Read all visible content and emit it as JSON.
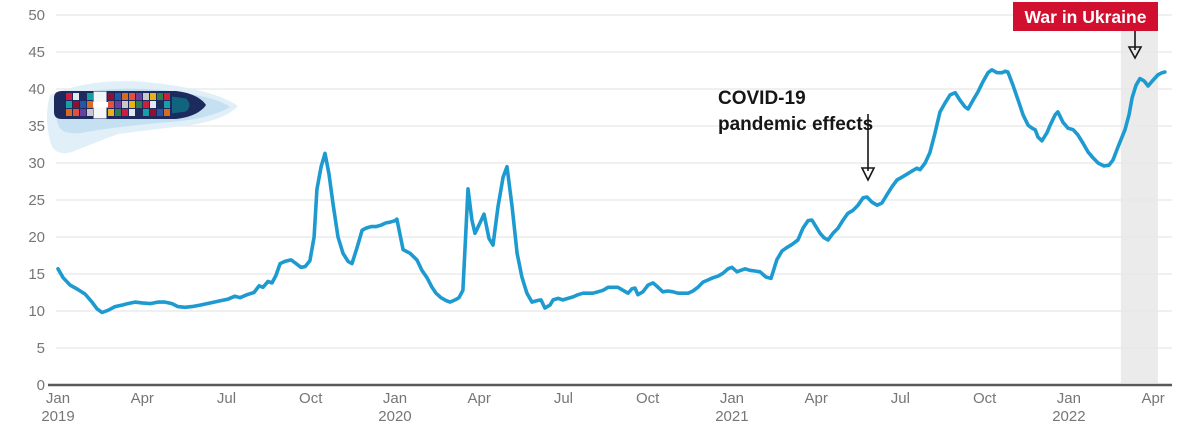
{
  "chart_data": {
    "type": "line",
    "line_color": "#1d9bd1",
    "grid_color": "#e8e8e8",
    "axis_color": "#58585a",
    "tick_label_color": "#767676",
    "y_axis": {
      "min": 0,
      "max": 50,
      "tick_step": 5,
      "ticks": [
        0,
        5,
        10,
        15,
        20,
        25,
        30,
        35,
        40,
        45,
        50
      ]
    },
    "x_axis": {
      "unit": "month",
      "ticks": [
        {
          "t": 0,
          "month": "Jan",
          "year": "2019"
        },
        {
          "t": 3,
          "month": "Apr"
        },
        {
          "t": 6,
          "month": "Jul"
        },
        {
          "t": 9,
          "month": "Oct"
        },
        {
          "t": 12,
          "month": "Jan",
          "year": "2020"
        },
        {
          "t": 15,
          "month": "Apr"
        },
        {
          "t": 18,
          "month": "Jul"
        },
        {
          "t": 21,
          "month": "Oct"
        },
        {
          "t": 24,
          "month": "Jan",
          "year": "2021"
        },
        {
          "t": 27,
          "month": "Apr"
        },
        {
          "t": 30,
          "month": "Jul"
        },
        {
          "t": 33,
          "month": "Oct"
        },
        {
          "t": 36,
          "month": "Jan",
          "year": "2022"
        },
        {
          "t": 39,
          "month": "Apr"
        }
      ]
    },
    "series": [
      {
        "name": "index-value",
        "points": [
          [
            0,
            15.7
          ],
          [
            0.18,
            14.5
          ],
          [
            0.43,
            13.5
          ],
          [
            0.71,
            12.9
          ],
          [
            0.96,
            12.3
          ],
          [
            1.21,
            11.2
          ],
          [
            1.39,
            10.3
          ],
          [
            1.57,
            9.8
          ],
          [
            1.78,
            10.1
          ],
          [
            2.03,
            10.6
          ],
          [
            2.28,
            10.8
          ],
          [
            2.49,
            11
          ],
          [
            2.74,
            11.2
          ],
          [
            2.99,
            11.1
          ],
          [
            3.28,
            11
          ],
          [
            3.56,
            11.2
          ],
          [
            3.81,
            11.2
          ],
          [
            4.06,
            11
          ],
          [
            4.27,
            10.6
          ],
          [
            4.52,
            10.5
          ],
          [
            4.77,
            10.6
          ],
          [
            5.06,
            10.8
          ],
          [
            5.31,
            11
          ],
          [
            5.56,
            11.2
          ],
          [
            5.8,
            11.4
          ],
          [
            6.05,
            11.6
          ],
          [
            6.3,
            12
          ],
          [
            6.48,
            11.8
          ],
          [
            6.73,
            12.2
          ],
          [
            6.98,
            12.5
          ],
          [
            7.16,
            13.4
          ],
          [
            7.3,
            13.2
          ],
          [
            7.48,
            14
          ],
          [
            7.62,
            13.8
          ],
          [
            7.76,
            14.8
          ],
          [
            7.91,
            16.4
          ],
          [
            8.08,
            16.7
          ],
          [
            8.3,
            16.9
          ],
          [
            8.48,
            16.4
          ],
          [
            8.65,
            15.9
          ],
          [
            8.8,
            16
          ],
          [
            8.97,
            16.8
          ],
          [
            9.12,
            20
          ],
          [
            9.22,
            26.4
          ],
          [
            9.37,
            29.5
          ],
          [
            9.51,
            31.3
          ],
          [
            9.65,
            28.5
          ],
          [
            9.79,
            24.6
          ],
          [
            9.97,
            20
          ],
          [
            10.15,
            17.8
          ],
          [
            10.33,
            16.7
          ],
          [
            10.47,
            16.4
          ],
          [
            10.65,
            18.6
          ],
          [
            10.83,
            20.9
          ],
          [
            10.97,
            21.2
          ],
          [
            11.15,
            21.4
          ],
          [
            11.32,
            21.4
          ],
          [
            11.5,
            21.6
          ],
          [
            11.68,
            21.9
          ],
          [
            11.82,
            22
          ],
          [
            12,
            22.2
          ],
          [
            12.07,
            22.4
          ],
          [
            12.29,
            18.3
          ],
          [
            12.54,
            17.8
          ],
          [
            12.78,
            16.9
          ],
          [
            12.96,
            15.5
          ],
          [
            13.14,
            14.5
          ],
          [
            13.32,
            13.2
          ],
          [
            13.46,
            12.4
          ],
          [
            13.64,
            11.8
          ],
          [
            13.82,
            11.4
          ],
          [
            13.96,
            11.2
          ],
          [
            14.14,
            11.5
          ],
          [
            14.28,
            11.8
          ],
          [
            14.42,
            12.8
          ],
          [
            14.6,
            26.5
          ],
          [
            14.74,
            22.3
          ],
          [
            14.85,
            20.5
          ],
          [
            15.03,
            21.9
          ],
          [
            15.17,
            23.1
          ],
          [
            15.35,
            19.8
          ],
          [
            15.49,
            18.9
          ],
          [
            15.67,
            24.1
          ],
          [
            15.85,
            28.1
          ],
          [
            15.99,
            29.5
          ],
          [
            16.17,
            24.1
          ],
          [
            16.35,
            17.8
          ],
          [
            16.52,
            14.6
          ],
          [
            16.7,
            12.4
          ],
          [
            16.88,
            11.2
          ],
          [
            17.06,
            11.4
          ],
          [
            17.2,
            11.5
          ],
          [
            17.34,
            10.4
          ],
          [
            17.52,
            10.8
          ],
          [
            17.63,
            11.5
          ],
          [
            17.81,
            11.7
          ],
          [
            17.98,
            11.5
          ],
          [
            18.16,
            11.7
          ],
          [
            18.34,
            11.9
          ],
          [
            18.52,
            12.2
          ],
          [
            18.7,
            12.4
          ],
          [
            18.87,
            12.4
          ],
          [
            19.05,
            12.4
          ],
          [
            19.23,
            12.6
          ],
          [
            19.41,
            12.8
          ],
          [
            19.59,
            13.2
          ],
          [
            19.76,
            13.2
          ],
          [
            19.94,
            13.2
          ],
          [
            20.12,
            12.8
          ],
          [
            20.3,
            12.4
          ],
          [
            20.44,
            13
          ],
          [
            20.55,
            13.1
          ],
          [
            20.65,
            12.2
          ],
          [
            20.83,
            12.6
          ],
          [
            21.01,
            13.5
          ],
          [
            21.19,
            13.8
          ],
          [
            21.37,
            13.2
          ],
          [
            21.54,
            12.6
          ],
          [
            21.72,
            12.7
          ],
          [
            21.9,
            12.6
          ],
          [
            22.08,
            12.4
          ],
          [
            22.26,
            12.4
          ],
          [
            22.44,
            12.4
          ],
          [
            22.61,
            12.7
          ],
          [
            22.79,
            13.2
          ],
          [
            22.97,
            13.9
          ],
          [
            23.15,
            14.2
          ],
          [
            23.33,
            14.5
          ],
          [
            23.5,
            14.7
          ],
          [
            23.68,
            15.1
          ],
          [
            23.86,
            15.7
          ],
          [
            24,
            15.9
          ],
          [
            24.18,
            15.3
          ],
          [
            24.32,
            15.5
          ],
          [
            24.47,
            15.7
          ],
          [
            24.64,
            15.5
          ],
          [
            24.82,
            15.4
          ],
          [
            25,
            15.3
          ],
          [
            25.21,
            14.6
          ],
          [
            25.39,
            14.4
          ],
          [
            25.6,
            16.9
          ],
          [
            25.78,
            18.1
          ],
          [
            25.96,
            18.6
          ],
          [
            26.14,
            19
          ],
          [
            26.35,
            19.6
          ],
          [
            26.53,
            21.2
          ],
          [
            26.71,
            22.2
          ],
          [
            26.85,
            22.3
          ],
          [
            26.99,
            21.4
          ],
          [
            27.14,
            20.5
          ],
          [
            27.28,
            19.9
          ],
          [
            27.42,
            19.6
          ],
          [
            27.6,
            20.5
          ],
          [
            27.78,
            21.2
          ],
          [
            27.96,
            22.3
          ],
          [
            28.13,
            23.2
          ],
          [
            28.31,
            23.6
          ],
          [
            28.49,
            24.3
          ],
          [
            28.67,
            25.3
          ],
          [
            28.81,
            25.4
          ],
          [
            28.99,
            24.7
          ],
          [
            29.17,
            24.3
          ],
          [
            29.34,
            24.6
          ],
          [
            29.52,
            25.7
          ],
          [
            29.7,
            26.8
          ],
          [
            29.88,
            27.7
          ],
          [
            30.06,
            28.1
          ],
          [
            30.24,
            28.5
          ],
          [
            30.41,
            28.9
          ],
          [
            30.59,
            29.3
          ],
          [
            30.7,
            29.1
          ],
          [
            30.88,
            30
          ],
          [
            31.05,
            31.4
          ],
          [
            31.23,
            34
          ],
          [
            31.41,
            36.9
          ],
          [
            31.59,
            38.1
          ],
          [
            31.77,
            39.2
          ],
          [
            31.95,
            39.5
          ],
          [
            32.12,
            38.5
          ],
          [
            32.3,
            37.6
          ],
          [
            32.41,
            37.3
          ],
          [
            32.59,
            38.5
          ],
          [
            32.76,
            39.6
          ],
          [
            32.94,
            41
          ],
          [
            33.12,
            42.2
          ],
          [
            33.26,
            42.6
          ],
          [
            33.44,
            42.2
          ],
          [
            33.62,
            42.2
          ],
          [
            33.73,
            42.4
          ],
          [
            33.83,
            42.3
          ],
          [
            34.01,
            40.5
          ],
          [
            34.19,
            38.5
          ],
          [
            34.37,
            36.5
          ],
          [
            34.55,
            35.1
          ],
          [
            34.69,
            34.7
          ],
          [
            34.8,
            34.5
          ],
          [
            34.9,
            33.5
          ],
          [
            35.04,
            33
          ],
          [
            35.22,
            34.1
          ],
          [
            35.33,
            35.1
          ],
          [
            35.51,
            36.5
          ],
          [
            35.61,
            36.9
          ],
          [
            35.79,
            35.5
          ],
          [
            35.97,
            34.7
          ],
          [
            36.15,
            34.5
          ],
          [
            36.32,
            33.8
          ],
          [
            36.5,
            32.7
          ],
          [
            36.68,
            31.5
          ],
          [
            36.86,
            30.7
          ],
          [
            37.04,
            30
          ],
          [
            37.25,
            29.6
          ],
          [
            37.43,
            29.7
          ],
          [
            37.57,
            30.4
          ],
          [
            37.71,
            31.8
          ],
          [
            37.86,
            33.2
          ],
          [
            38,
            34.5
          ],
          [
            38.14,
            36.5
          ],
          [
            38.25,
            38.8
          ],
          [
            38.39,
            40.5
          ],
          [
            38.53,
            41.4
          ],
          [
            38.68,
            41.1
          ],
          [
            38.82,
            40.4
          ],
          [
            39,
            41.2
          ],
          [
            39.17,
            41.9
          ],
          [
            39.32,
            42.2
          ],
          [
            39.42,
            42.3
          ]
        ]
      }
    ],
    "annotations": {
      "war": {
        "label": "War in Ukraine",
        "badge_color": "#d11030",
        "text_color": "#ffffff",
        "band": {
          "from": 37.85,
          "to": 39.17,
          "color": "#ebebeb"
        }
      },
      "covid": {
        "line1": "COVID-19",
        "line2": "pandemic effects",
        "arrow_t": 28.85
      }
    }
  },
  "illustration": {
    "name": "container-ship-top-view",
    "hull_color": "#1c2a5e",
    "bridge_color": "#f4f6f8",
    "bow_color": "#10647e",
    "wake_colors": [
      "#e0eff8",
      "#c5e1f1"
    ],
    "container_colors": [
      "#cf1c3f",
      "#2456a8",
      "#e8b117",
      "#16a0a6",
      "#6a3fa0",
      "#e2e8ee",
      "#d96a1e",
      "#2e7d4f",
      "#8f1030",
      "#c9c9c9",
      "#1d2b5e",
      "#e4503c"
    ]
  }
}
